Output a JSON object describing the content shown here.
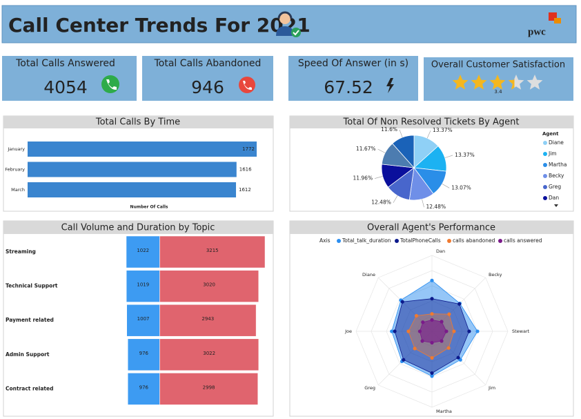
{
  "header": {
    "title": "Call Center Trends For 2021",
    "logo": "pwc"
  },
  "kpis": [
    {
      "label": "Total Calls Answered",
      "value": 4054
    },
    {
      "label": "Total Calls Abandoned",
      "value": 946
    },
    {
      "label": "Speed Of Answer (in s)",
      "value": 67.52
    },
    {
      "label": "Overall Customer Satisfaction",
      "value": 3.4
    }
  ],
  "chart_data": [
    {
      "type": "hbar",
      "title": "Total Calls By Time",
      "categories": [
        "January",
        "February",
        "March"
      ],
      "values": [
        1772,
        1616,
        1612
      ],
      "color": "#3a85cf",
      "xlabel": "Number Of Calls",
      "xlim": [
        0,
        1772
      ]
    },
    {
      "type": "pie",
      "title": "Total Of Non Resolved Tickets By Agent",
      "legend_title": "Agent",
      "categories": [
        "Diane",
        "Jim",
        "Martha",
        "Becky",
        "Greg",
        "Dan",
        null,
        null
      ],
      "values": [
        13.37,
        13.37,
        13.07,
        12.48,
        12.48,
        11.96,
        11.67,
        11.6
      ],
      "value_labels": [
        "13.37%",
        "13.37%",
        "13.07%",
        "12.48%",
        "12.48%",
        "11.96%",
        "11.67%",
        "11.6%"
      ],
      "colors": [
        "#8fd0f6",
        "#1cb2f2",
        "#2a8ee8",
        "#6f8fe8",
        "#4866cc",
        "#0a0f9c",
        "#4c7cb0",
        "#1a62b8"
      ]
    },
    {
      "type": "diverging_bar",
      "title": "Call Volume and Duration by Topic",
      "categories": [
        "Streaming",
        "Technical Support",
        "Payment related",
        "Admin Support",
        "Contract related"
      ],
      "series": [
        {
          "color": "#3d9bf2",
          "values": [
            1022,
            1019,
            1007,
            976,
            976
          ]
        },
        {
          "color": "#e0646e",
          "values": [
            3215,
            3020,
            2943,
            3022,
            2998
          ]
        }
      ],
      "xlim": [
        -1022,
        3215
      ]
    },
    {
      "type": "radar",
      "title": "Overall Agent's Performance",
      "legend_title": "Axis",
      "categories": [
        "Dan",
        "Becky",
        "Stewart",
        "Jim",
        "Martha",
        "Greg",
        "Joe",
        "Diane"
      ],
      "ylim": [
        0,
        100
      ],
      "series": [
        {
          "name": "Total_talk_duration",
          "color": "#2b8ef0",
          "values": [
            67,
            52,
            60,
            53,
            59,
            56,
            53,
            58
          ]
        },
        {
          "name": "TotalPhoneCalls",
          "color": "#0c1a8c",
          "values": [
            43,
            51,
            49,
            49,
            55,
            53,
            49,
            55
          ]
        },
        {
          "name": "calls abandoned",
          "color": "#f07a30",
          "values": [
            23,
            32,
            29,
            31,
            35,
            32,
            31,
            29
          ]
        },
        {
          "name": "calls answered",
          "color": "#7a1a8a",
          "values": [
            15,
            18,
            19,
            18,
            15,
            18,
            16,
            17
          ]
        }
      ]
    }
  ]
}
